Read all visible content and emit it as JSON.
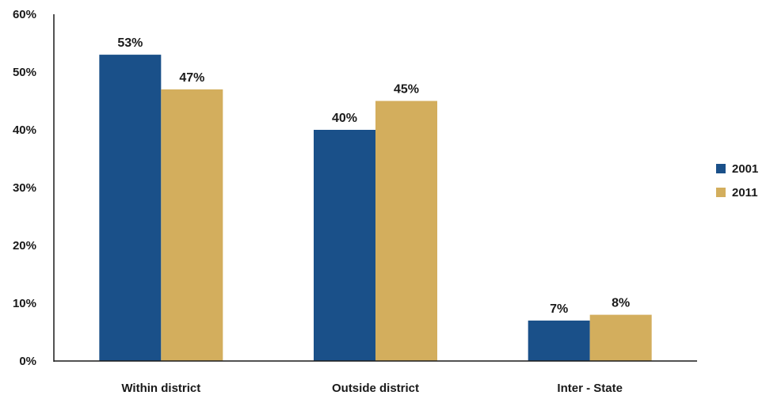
{
  "chart_data": {
    "type": "bar",
    "title": "",
    "xlabel": "",
    "ylabel": "",
    "categories": [
      "Within district",
      "Outside district",
      "Inter - State"
    ],
    "series": [
      {
        "name": "2001",
        "values": [
          53,
          40,
          7
        ],
        "labels": [
          "53%",
          "40%",
          "7%"
        ],
        "color": "#1a5089"
      },
      {
        "name": "2011",
        "values": [
          47,
          45,
          8
        ],
        "labels": [
          "47%",
          "45%",
          "8%"
        ],
        "color": "#d3ae5d"
      }
    ],
    "ylim": [
      0,
      60
    ],
    "yticks": [
      0,
      10,
      20,
      30,
      40,
      50,
      60
    ],
    "ytick_labels": [
      "0%",
      "10%",
      "20%",
      "30%",
      "40%",
      "50%",
      "60%"
    ],
    "grid": false,
    "legend_position": "right"
  }
}
